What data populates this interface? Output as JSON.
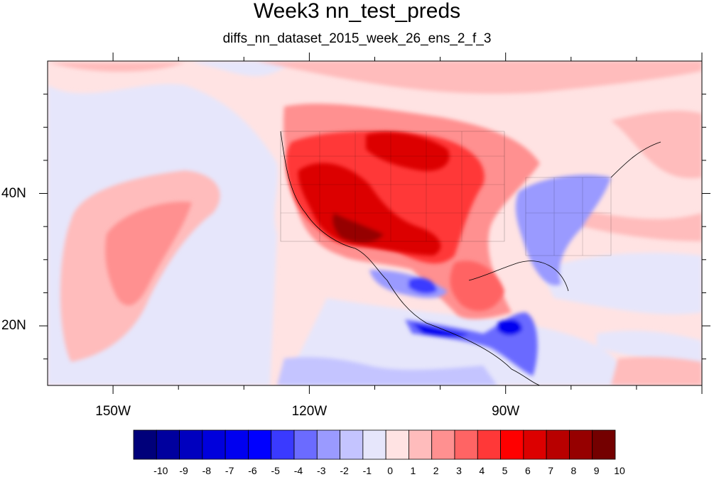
{
  "title": "Week3 nn_test_preds",
  "subtitle": "diffs_nn_dataset_2015_week_26_ens_2_f_3",
  "lat_labels": [
    {
      "text": "40N",
      "lat": 40
    },
    {
      "text": "20N",
      "lat": 20
    }
  ],
  "lon_labels": [
    {
      "text": "150W",
      "lon": -150
    },
    {
      "text": "120W",
      "lon": -120
    },
    {
      "text": "90W",
      "lon": -90
    }
  ],
  "map_extent": {
    "lon_min": -160,
    "lon_max": -60,
    "lat_min": 11,
    "lat_max": 60
  },
  "colorbar": {
    "levels": [
      "-10",
      "-9",
      "-8",
      "-7",
      "-6",
      "-5",
      "-4",
      "-3",
      "-2",
      "-1",
      "0",
      "1",
      "2",
      "3",
      "4",
      "5",
      "6",
      "7",
      "8",
      "9",
      "10"
    ],
    "colors": [
      "#00007a",
      "#00009e",
      "#0000bf",
      "#0000dc",
      "#0000f0",
      "#0000ff",
      "#3a3aff",
      "#6b6bff",
      "#9a9aff",
      "#c4c4ff",
      "#e6e6fb",
      "#ffe3e3",
      "#ffbcbc",
      "#ff9090",
      "#ff6464",
      "#ff3838",
      "#ff0000",
      "#dc0000",
      "#b80000",
      "#960000",
      "#740000"
    ]
  }
}
